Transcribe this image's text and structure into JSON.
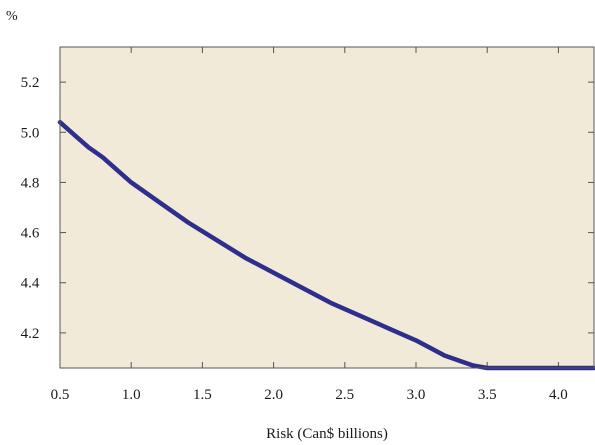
{
  "chart_data": {
    "type": "line",
    "title": "",
    "unit_label": "%",
    "xlabel": "Risk (Can$ billions)",
    "ylabel": "",
    "xlim": [
      0.5,
      4.25
    ],
    "ylim": [
      4.06,
      5.34
    ],
    "x_ticks": [
      0.5,
      1.0,
      1.5,
      2.0,
      2.5,
      3.0,
      3.5,
      4.0
    ],
    "x_tick_labels": [
      "0.5",
      "1.0",
      "1.5",
      "2.0",
      "2.5",
      "3.0",
      "3.5",
      "4.0"
    ],
    "y_ticks": [
      4.2,
      4.4,
      4.6,
      4.8,
      5.0,
      5.2
    ],
    "y_tick_labels": [
      "4.2",
      "4.4",
      "4.6",
      "4.8",
      "5.0",
      "5.2"
    ],
    "grid": false,
    "legend": "none",
    "colors": {
      "plot_background": "#f2ead9",
      "line": "#2e2e8c",
      "frame": "#555555"
    },
    "series": [
      {
        "x": [
          0.5,
          0.6,
          0.7,
          0.8,
          1.0,
          1.2,
          1.4,
          1.6,
          1.8,
          2.0,
          2.2,
          2.4,
          2.6,
          2.8,
          3.0,
          3.1,
          3.2,
          3.3,
          3.4,
          3.5,
          3.6,
          3.7,
          3.8,
          4.0,
          4.25
        ],
        "y": [
          5.04,
          4.99,
          4.94,
          4.9,
          4.8,
          4.72,
          4.64,
          4.57,
          4.5,
          4.44,
          4.38,
          4.32,
          4.27,
          4.22,
          4.17,
          4.14,
          4.11,
          4.09,
          4.07,
          4.06,
          4.06,
          4.06,
          4.06,
          4.06,
          4.06
        ]
      }
    ]
  }
}
